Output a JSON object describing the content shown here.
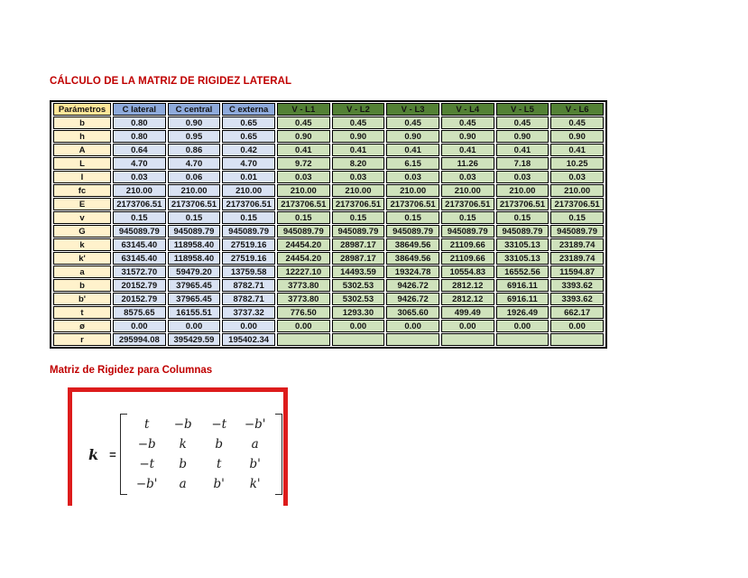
{
  "title": "CÁLCULO DE LA MATRIZ DE RIGIDEZ LATERAL",
  "section2": {
    "title": "Matriz de Rigidez para Columnas"
  },
  "colors": {
    "title_red": "#c00000",
    "box_red": "#dd1c1c",
    "header_param_bg": "#ffe699",
    "header_c_bg": "#8eaadb",
    "header_v_bg": "#538135",
    "cell_param_bg": "#fff2cc",
    "cell_c_bg": "#d9e2f3",
    "cell_v_bg": "#cfe2bc"
  },
  "table": {
    "header": [
      "Parámetros",
      "C lateral",
      "C central",
      "C externa",
      "V - L1",
      "V - L2",
      "V - L3",
      "V - L4",
      "V - L5",
      "V - L6"
    ],
    "rows": [
      {
        "label": "b",
        "values": [
          "0.80",
          "0.90",
          "0.65",
          "0.45",
          "0.45",
          "0.45",
          "0.45",
          "0.45",
          "0.45"
        ]
      },
      {
        "label": "h",
        "values": [
          "0.80",
          "0.95",
          "0.65",
          "0.90",
          "0.90",
          "0.90",
          "0.90",
          "0.90",
          "0.90"
        ]
      },
      {
        "label": "A",
        "values": [
          "0.64",
          "0.86",
          "0.42",
          "0.41",
          "0.41",
          "0.41",
          "0.41",
          "0.41",
          "0.41"
        ]
      },
      {
        "label": "L",
        "values": [
          "4.70",
          "4.70",
          "4.70",
          "9.72",
          "8.20",
          "6.15",
          "11.26",
          "7.18",
          "10.25"
        ]
      },
      {
        "label": "I",
        "values": [
          "0.03",
          "0.06",
          "0.01",
          "0.03",
          "0.03",
          "0.03",
          "0.03",
          "0.03",
          "0.03"
        ]
      },
      {
        "label": "fc",
        "values": [
          "210.00",
          "210.00",
          "210.00",
          "210.00",
          "210.00",
          "210.00",
          "210.00",
          "210.00",
          "210.00"
        ]
      },
      {
        "label": "E",
        "values": [
          "2173706.51",
          "2173706.51",
          "2173706.51",
          "2173706.51",
          "2173706.51",
          "2173706.51",
          "2173706.51",
          "2173706.51",
          "2173706.51"
        ]
      },
      {
        "label": "v",
        "values": [
          "0.15",
          "0.15",
          "0.15",
          "0.15",
          "0.15",
          "0.15",
          "0.15",
          "0.15",
          "0.15"
        ]
      },
      {
        "label": "G",
        "values": [
          "945089.79",
          "945089.79",
          "945089.79",
          "945089.79",
          "945089.79",
          "945089.79",
          "945089.79",
          "945089.79",
          "945089.79"
        ]
      },
      {
        "label": "k",
        "values": [
          "63145.40",
          "118958.40",
          "27519.16",
          "24454.20",
          "28987.17",
          "38649.56",
          "21109.66",
          "33105.13",
          "23189.74"
        ]
      },
      {
        "label": "k'",
        "values": [
          "63145.40",
          "118958.40",
          "27519.16",
          "24454.20",
          "28987.17",
          "38649.56",
          "21109.66",
          "33105.13",
          "23189.74"
        ]
      },
      {
        "label": "a",
        "values": [
          "31572.70",
          "59479.20",
          "13759.58",
          "12227.10",
          "14493.59",
          "19324.78",
          "10554.83",
          "16552.56",
          "11594.87"
        ]
      },
      {
        "label": "b",
        "values": [
          "20152.79",
          "37965.45",
          "8782.71",
          "3773.80",
          "5302.53",
          "9426.72",
          "2812.12",
          "6916.11",
          "3393.62"
        ]
      },
      {
        "label": "b'",
        "values": [
          "20152.79",
          "37965.45",
          "8782.71",
          "3773.80",
          "5302.53",
          "9426.72",
          "2812.12",
          "6916.11",
          "3393.62"
        ]
      },
      {
        "label": "t",
        "values": [
          "8575.65",
          "16155.51",
          "3737.32",
          "776.50",
          "1293.30",
          "3065.60",
          "499.49",
          "1926.49",
          "662.17"
        ]
      },
      {
        "label": "ø",
        "values": [
          "0.00",
          "0.00",
          "0.00",
          "0.00",
          "0.00",
          "0.00",
          "0.00",
          "0.00",
          "0.00"
        ]
      },
      {
        "label": "r",
        "values": [
          "295994.08",
          "395429.59",
          "195402.34",
          "",
          "",
          "",
          "",
          "",
          ""
        ]
      }
    ]
  },
  "matrix": {
    "lhs": "k",
    "eq": "=",
    "rows": [
      [
        "t",
        "−b",
        "−t",
        "−b'"
      ],
      [
        "−b",
        "k",
        "b",
        "a"
      ],
      [
        "−t",
        "b",
        "t",
        "b'"
      ],
      [
        "−b'",
        "a",
        "b'",
        "k'"
      ]
    ]
  }
}
